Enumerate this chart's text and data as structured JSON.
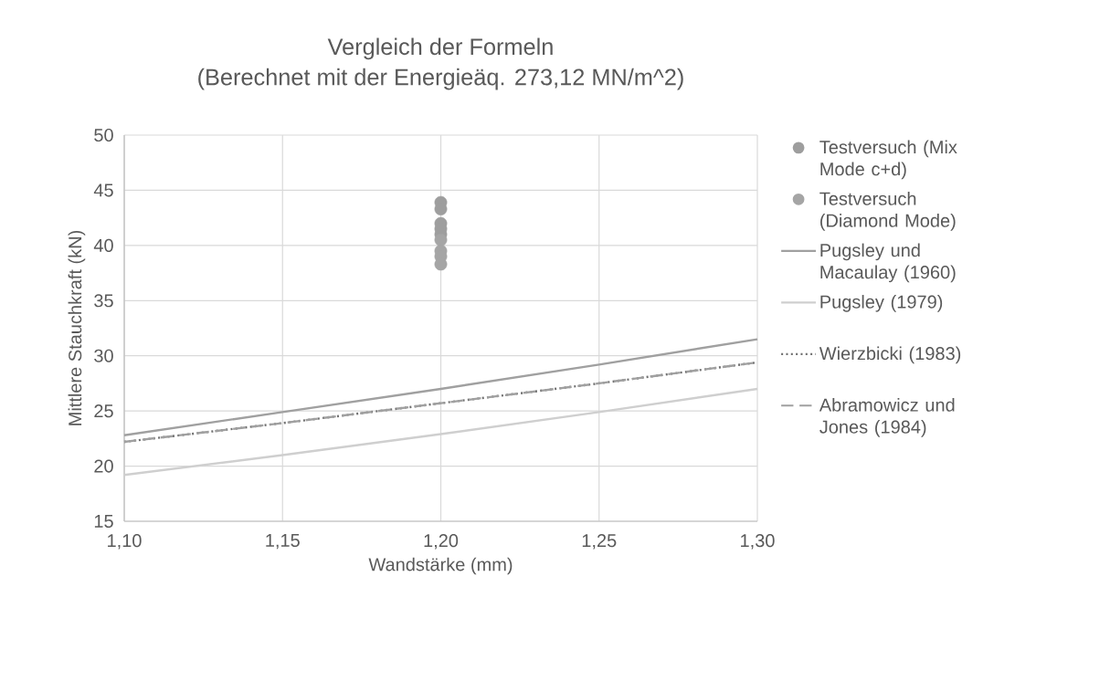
{
  "chart_data": {
    "type": "line",
    "title": "Vergleich der Formeln",
    "subtitle": "(Berechnet mit der Energieäq. 273,12 MN/m^2)",
    "xlabel": "Wandstärke (mm)",
    "ylabel": "Mittlere Stauchkraft (kN)",
    "xlim": [
      1.1,
      1.3
    ],
    "xticks": [
      {
        "value": 1.1,
        "label": "1,10"
      },
      {
        "value": 1.15,
        "label": "1,15"
      },
      {
        "value": 1.2,
        "label": "1,20"
      },
      {
        "value": 1.25,
        "label": "1,25"
      },
      {
        "value": 1.3,
        "label": "1,30"
      }
    ],
    "ylim": [
      15,
      50
    ],
    "yticks": [
      15,
      20,
      25,
      30,
      35,
      40,
      45,
      50
    ],
    "grid": true,
    "legend": "right",
    "series": [
      {
        "name": "Testversuch (Mix Mode c+d)",
        "type": "scatter",
        "marker": "circle",
        "color": "#9e9e9e",
        "x": [
          1.2,
          1.2,
          1.2,
          1.2,
          1.2
        ],
        "values": [
          43.9,
          43.3,
          42.0,
          41.5,
          41.0
        ]
      },
      {
        "name": "Testversuch (Diamond Mode)",
        "type": "scatter",
        "marker": "circle",
        "color": "#a5a5a5",
        "x": [
          1.2,
          1.2,
          1.2,
          1.2
        ],
        "values": [
          40.5,
          39.5,
          39.0,
          38.3
        ]
      },
      {
        "name": "Pugsley und Macaulay (1960)",
        "line_style": "solid",
        "color": "#a0a0a0",
        "x": [
          1.1,
          1.15,
          1.2,
          1.25,
          1.3
        ],
        "values": [
          22.8,
          24.9,
          27.0,
          29.2,
          31.5
        ]
      },
      {
        "name": "Pugsley (1979)",
        "line_style": "solid",
        "color": "#cfcfcf",
        "x": [
          1.1,
          1.15,
          1.2,
          1.25,
          1.3
        ],
        "values": [
          19.2,
          21.0,
          22.9,
          24.9,
          27.0
        ]
      },
      {
        "name": "Wierzbicki (1983)",
        "line_style": "dotted",
        "color": "#707070",
        "x": [
          1.1,
          1.15,
          1.2,
          1.25,
          1.3
        ],
        "values": [
          22.2,
          23.9,
          25.7,
          27.5,
          29.4
        ]
      },
      {
        "name": "Abramowicz und Jones (1984)",
        "line_style": "dashed",
        "color": "#a0a0a0",
        "x": [
          1.1,
          1.15,
          1.2,
          1.25,
          1.3
        ],
        "values": [
          22.2,
          23.9,
          25.7,
          27.5,
          29.4
        ]
      }
    ]
  }
}
